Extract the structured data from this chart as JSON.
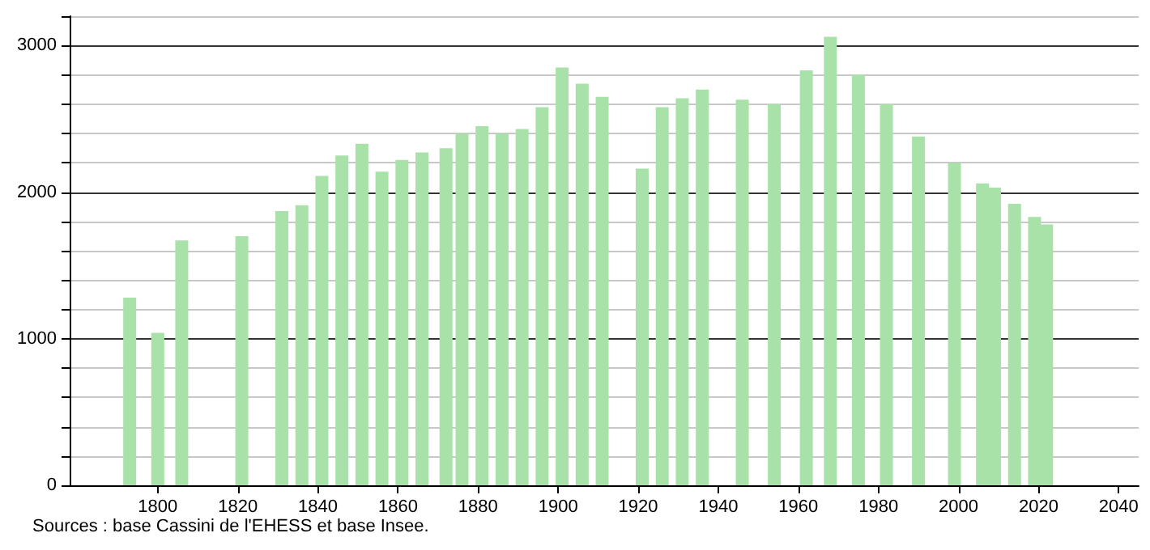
{
  "chart_data": {
    "type": "bar",
    "x": [
      1793,
      1800,
      1806,
      1821,
      1831,
      1836,
      1841,
      1846,
      1851,
      1856,
      1861,
      1866,
      1872,
      1876,
      1881,
      1886,
      1891,
      1896,
      1901,
      1906,
      1911,
      1921,
      1926,
      1931,
      1936,
      1946,
      1954,
      1962,
      1968,
      1975,
      1982,
      1990,
      1999,
      2006,
      2009,
      2014,
      2019,
      2022
    ],
    "values": [
      1280,
      1040,
      1670,
      1700,
      1870,
      1910,
      2110,
      2250,
      2330,
      2140,
      2220,
      2270,
      2300,
      2400,
      2450,
      2400,
      2430,
      2580,
      2850,
      2740,
      2650,
      2160,
      2580,
      2640,
      2700,
      2630,
      2600,
      2830,
      3060,
      2800,
      2600,
      2380,
      2200,
      2060,
      2030,
      1920,
      1830,
      1780
    ],
    "color": "#a9e2a9",
    "xlim": [
      1778,
      2045
    ],
    "xticks": [
      1800,
      1820,
      1840,
      1860,
      1880,
      1900,
      1920,
      1940,
      1960,
      1980,
      2000,
      2020,
      2040
    ],
    "ylim": [
      0,
      3200
    ],
    "yticks": [
      0,
      {
        "value": 200,
        "label": null
      },
      {
        "value": 400,
        "label": null
      },
      {
        "value": 600,
        "label": null
      },
      {
        "value": 800,
        "label": null
      },
      1000,
      {
        "value": 1200,
        "label": null
      },
      {
        "value": 1400,
        "label": null
      },
      {
        "value": 1600,
        "label": null
      },
      {
        "value": 1800,
        "label": null
      },
      2000,
      {
        "value": 2200,
        "label": null
      },
      {
        "value": 2400,
        "label": null
      },
      {
        "value": 2600,
        "label": null
      },
      {
        "value": 2800,
        "label": null
      },
      3000,
      {
        "value": 3200,
        "label": null
      }
    ],
    "grid": "y",
    "annotations": [
      "Sources : base Cassini de l'EHESS et base Insee."
    ]
  }
}
